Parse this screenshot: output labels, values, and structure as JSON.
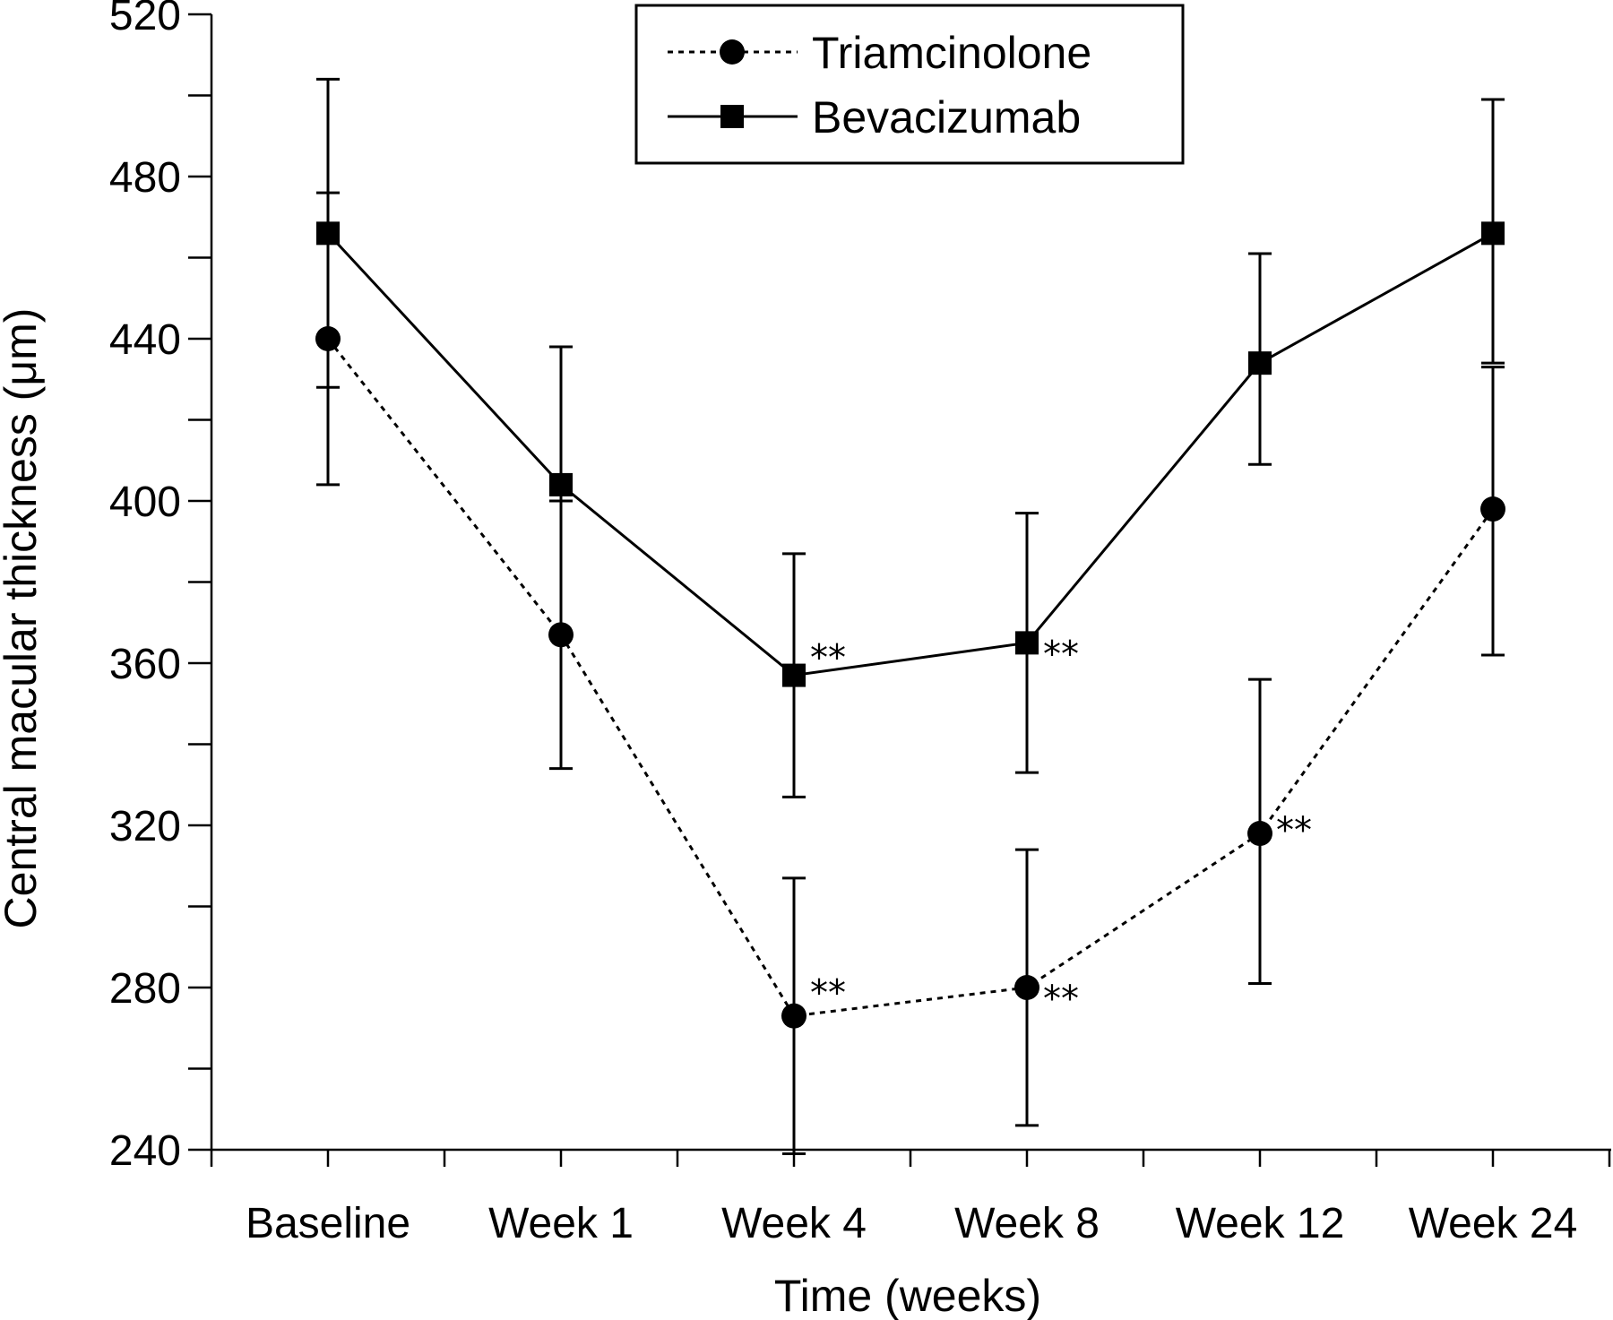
{
  "chart_data": {
    "type": "line",
    "title": "",
    "xlabel": "Time (weeks)",
    "ylabel": "Central macular thickness (μm)",
    "ylim": [
      240,
      520
    ],
    "y_major_ticks": [
      240,
      280,
      320,
      360,
      400,
      440,
      480,
      520
    ],
    "y_minor_step": 20,
    "categories": [
      "Baseline",
      "Week 1",
      "Week 4",
      "Week 8",
      "Week 12",
      "Week 24"
    ],
    "legend_position": "top-center",
    "grid": false,
    "series": [
      {
        "name": "Triamcinolone",
        "marker": "circle",
        "line_style": "dotted",
        "color": "#000000",
        "values": [
          440,
          367,
          273,
          280,
          318,
          398
        ],
        "error_low": [
          404,
          334,
          239,
          246,
          281,
          362
        ],
        "error_high": [
          476,
          400,
          307,
          314,
          356,
          433
        ],
        "annotations": [
          "",
          "",
          "**",
          "**",
          "**",
          ""
        ]
      },
      {
        "name": "Bevacizumab",
        "marker": "square",
        "line_style": "solid",
        "color": "#000000",
        "values": [
          466,
          404,
          357,
          365,
          434,
          466
        ],
        "error_low": [
          428,
          400,
          327,
          333,
          409,
          434
        ],
        "error_high": [
          504,
          438,
          387,
          397,
          461,
          499
        ],
        "annotations": [
          "",
          "",
          "**",
          "**",
          "",
          ""
        ]
      }
    ]
  }
}
